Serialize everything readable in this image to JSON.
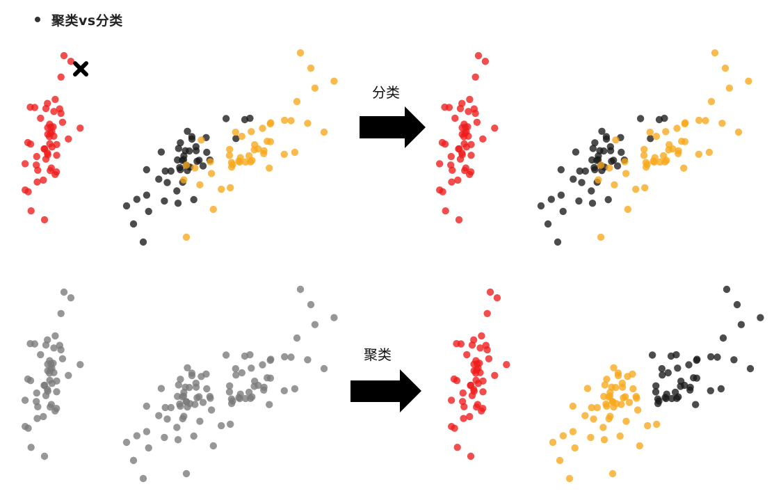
{
  "heading": {
    "text": "聚类vs分类"
  },
  "arrows": {
    "top_label": "分类",
    "bottom_label": "聚类"
  },
  "colors": {
    "red": "#ee1c1c",
    "black": "#1a1a1a",
    "orange": "#f7a81b",
    "gray": "#7a7a7a",
    "arrow": "#000000"
  },
  "marker_icon": "cross-x-icon"
}
